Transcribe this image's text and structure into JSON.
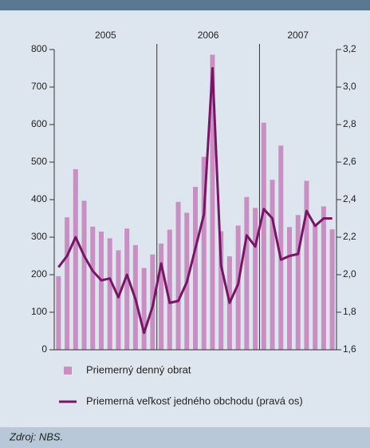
{
  "chart_data": {
    "type": "bar-line",
    "source": "Zdroj: NBS.",
    "groups": [
      "2005",
      "2006",
      "2007"
    ],
    "categories": [
      null,
      null,
      null,
      null,
      null,
      null,
      null,
      null,
      null,
      null,
      null,
      null,
      null,
      null,
      null,
      null,
      null,
      null,
      null,
      null,
      null,
      null,
      null,
      null,
      null,
      null,
      null,
      null,
      null,
      null,
      null,
      null,
      null
    ],
    "series": [
      {
        "name": "Priemerný denný obrat",
        "type": "bar",
        "color": "#c98fc2",
        "values": [
          196,
          353,
          481,
          397,
          328,
          315,
          297,
          265,
          323,
          279,
          218,
          254,
          283,
          320,
          394,
          365,
          434,
          514,
          786,
          316,
          249,
          331,
          407,
          378,
          605,
          453,
          544,
          327,
          359,
          450,
          334,
          382,
          321
        ]
      },
      {
        "name": "Priemerná veľkosť jedného obchodu (pravá os)",
        "type": "line",
        "axis": "y2",
        "color": "#7a1466",
        "values": [
          2.04,
          2.1,
          2.2,
          2.1,
          2.02,
          1.97,
          1.98,
          1.88,
          2.0,
          1.87,
          1.69,
          1.83,
          2.06,
          1.85,
          1.86,
          1.96,
          2.14,
          2.32,
          3.1,
          2.05,
          1.85,
          1.95,
          2.21,
          2.15,
          2.35,
          2.3,
          2.08,
          2.1,
          2.11,
          2.34,
          2.26,
          2.3,
          2.3
        ]
      }
    ],
    "ylim": [
      0,
      800
    ],
    "yticks": [
      0,
      100,
      200,
      300,
      400,
      500,
      600,
      700,
      800
    ],
    "y2lim": [
      1.6,
      3.2
    ],
    "y2ticks": [
      {
        "value": 1.6,
        "label": "1,6"
      },
      {
        "value": 1.8,
        "label": "1,8"
      },
      {
        "value": 2.0,
        "label": "2,0"
      },
      {
        "value": 2.2,
        "label": "2,2"
      },
      {
        "value": 2.4,
        "label": "2,4"
      },
      {
        "value": 2.6,
        "label": "2,6"
      },
      {
        "value": 2.8,
        "label": "2,8"
      },
      {
        "value": 3.0,
        "label": "3,0"
      },
      {
        "value": 3.2,
        "label": "3,2"
      }
    ]
  }
}
